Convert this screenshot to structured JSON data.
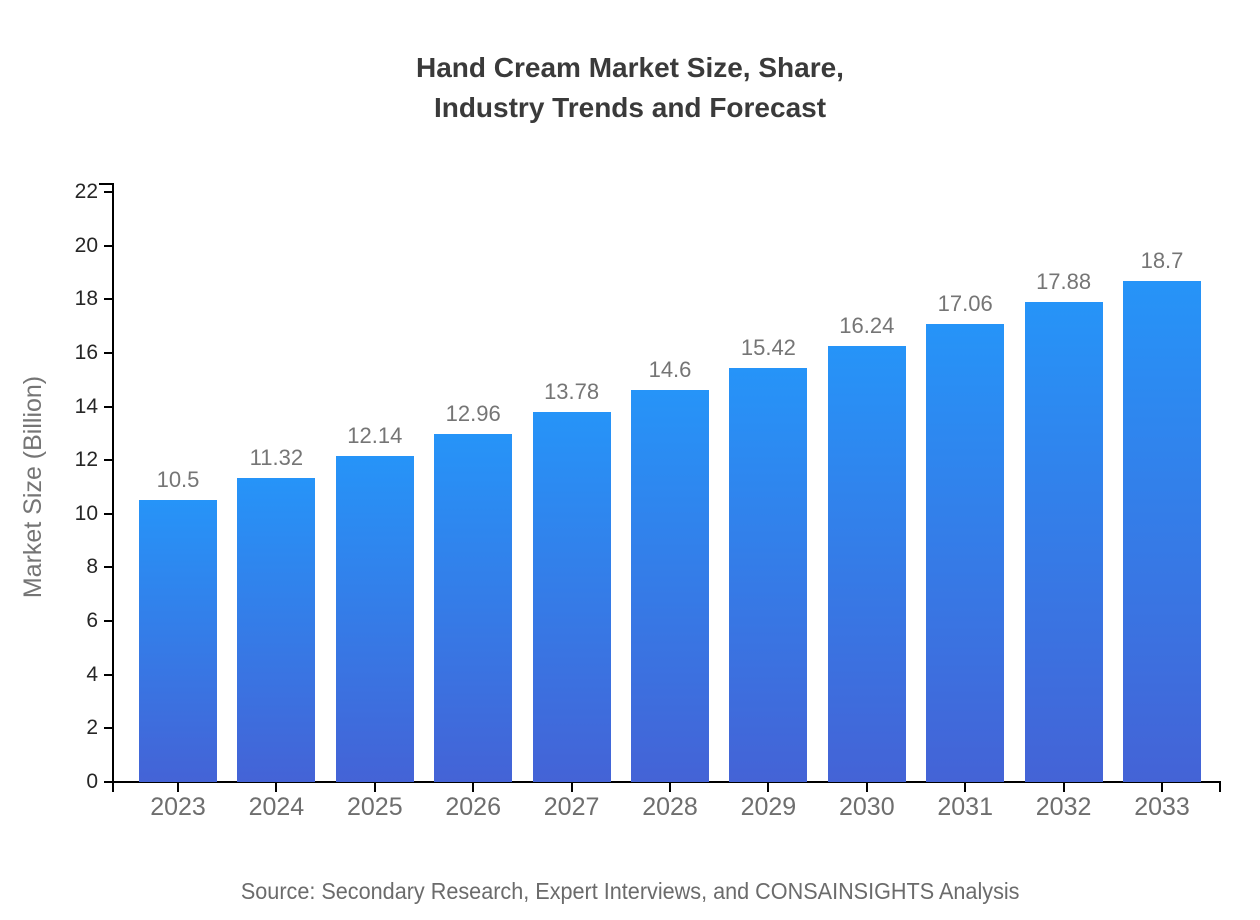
{
  "title": {
    "line1": "Hand Cream Market Size, Share,",
    "line2": "Industry Trends and Forecast"
  },
  "source": "Source: Secondary Research, Expert Interviews, and CONSAINSIGHTS Analysis",
  "chart_data": {
    "type": "bar",
    "title": "Hand Cream Market Size, Share, Industry Trends and Forecast",
    "categories": [
      "2023",
      "2024",
      "2025",
      "2026",
      "2027",
      "2028",
      "2029",
      "2030",
      "2031",
      "2032",
      "2033"
    ],
    "values": [
      10.5,
      11.32,
      12.14,
      12.96,
      13.78,
      14.6,
      15.42,
      16.24,
      17.06,
      17.88,
      18.7
    ],
    "xlabel": "",
    "ylabel": "Market Size (Billion)",
    "ylim": [
      0,
      22
    ],
    "yticks": [
      0,
      2,
      4,
      6,
      8,
      10,
      12,
      14,
      16,
      18,
      20,
      22
    ],
    "grid": false,
    "legend": false,
    "data_labels_shown": true,
    "colors": {
      "bar_gradient_top": "#2694f8",
      "bar_gradient_bottom": "#4463d6",
      "axis": "#000000",
      "value_label": "#757575",
      "x_tick_label": "#6e6e6e",
      "y_tick_label": "#262626",
      "title": "#3a3a3a",
      "source": "#6b6b6b"
    }
  }
}
